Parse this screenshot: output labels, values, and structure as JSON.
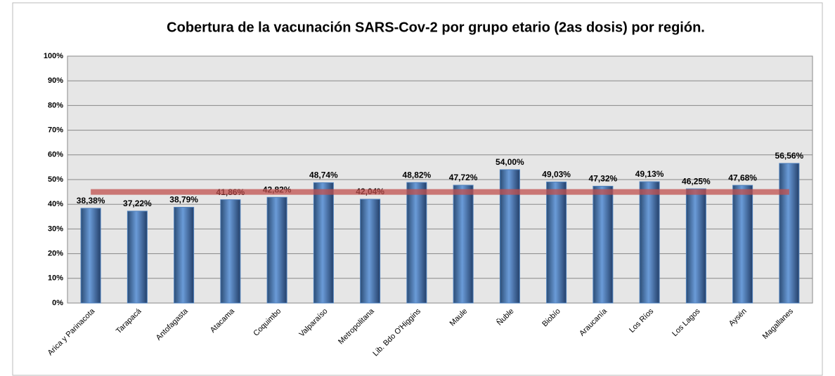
{
  "chart_data": {
    "type": "bar",
    "title": "Cobertura de la vacunación SARS-Cov-2 por grupo etario (2as dosis) por región.",
    "categories": [
      "Arica y Parinacota",
      "Tarapacá",
      "Antofagasta",
      "Atacama",
      "Coquimbo",
      "Valparaíso",
      "Metropolitana",
      "Lib. Bdo O'Higgins",
      "Maule",
      "Ñuble",
      "Biobío",
      "Araucanía",
      "Los Ríos",
      "Los Lagos",
      "Aysén",
      "Magallanes"
    ],
    "values": [
      38.38,
      37.22,
      38.79,
      41.86,
      42.82,
      48.74,
      42.04,
      48.82,
      47.72,
      54.0,
      49.03,
      47.32,
      49.13,
      46.25,
      47.68,
      56.56
    ],
    "value_labels": [
      "38,38%",
      "37,22%",
      "38,79%",
      "41,86%",
      "42,82%",
      "48,74%",
      "42,04%",
      "48,82%",
      "47,72%",
      "54,00%",
      "49,03%",
      "47,32%",
      "49,13%",
      "46,25%",
      "47,68%",
      "56,56%"
    ],
    "color": "#4f81bd",
    "reference_line": {
      "value": 45,
      "color": "#c0504d"
    },
    "ylim": [
      0,
      100
    ],
    "yticks": [
      {
        "value": 0,
        "label": "0%"
      },
      {
        "value": 10,
        "label": "10%"
      },
      {
        "value": 20,
        "label": "20%"
      },
      {
        "value": 30,
        "label": "30%"
      },
      {
        "value": 40,
        "label": "40%"
      },
      {
        "value": 50,
        "label": "50%"
      },
      {
        "value": 60,
        "label": "60%"
      },
      {
        "value": 70,
        "label": "70%"
      },
      {
        "value": 80,
        "label": "80%"
      },
      {
        "value": 90,
        "label": "90%"
      },
      {
        "value": 100,
        "label": "100%"
      }
    ],
    "grid": true
  }
}
